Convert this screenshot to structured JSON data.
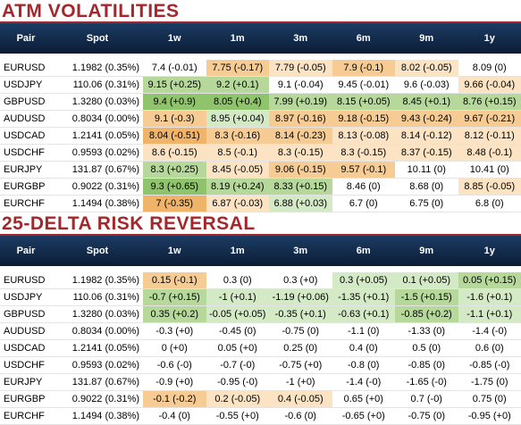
{
  "colors": {
    "header_bg": "#0f2a4d",
    "title_red": "#a6272b",
    "orange_light": "#fbe3c4",
    "orange_mid": "#f6cc94",
    "orange_dark": "#f0b36a",
    "green_light": "#d4e9c6",
    "green_mid": "#b6d99b",
    "green_dark": "#8fc46c"
  },
  "columns": [
    "Pair",
    "Spot",
    "1w",
    "1m",
    "3m",
    "6m",
    "9m",
    "1y"
  ],
  "atm": {
    "title": "ATM VOLATILITIES",
    "rows": [
      {
        "pair": "EURUSD",
        "spot": "1.1982 (0.35%)",
        "cells": [
          {
            "v": "7.4 (-0.01)",
            "c": ""
          },
          {
            "v": "7.75 (-0.17)",
            "c": "orange_mid"
          },
          {
            "v": "7.79 (-0.05)",
            "c": "orange_light"
          },
          {
            "v": "7.9 (-0.1)",
            "c": "orange_mid"
          },
          {
            "v": "8.02 (-0.05)",
            "c": "orange_light"
          },
          {
            "v": "8.09 (0)",
            "c": ""
          }
        ]
      },
      {
        "pair": "USDJPY",
        "spot": "110.06 (0.31%)",
        "cells": [
          {
            "v": "9.15 (+0.25)",
            "c": "green_mid"
          },
          {
            "v": "9.2 (+0.1)",
            "c": "green_mid"
          },
          {
            "v": "9.1 (-0.04)",
            "c": ""
          },
          {
            "v": "9.45 (-0.01)",
            "c": ""
          },
          {
            "v": "9.6 (-0.03)",
            "c": ""
          },
          {
            "v": "9.66 (-0.04)",
            "c": "orange_light"
          }
        ]
      },
      {
        "pair": "GBPUSD",
        "spot": "1.3280 (0.03%)",
        "cells": [
          {
            "v": "9.4 (+0.9)",
            "c": "green_dark"
          },
          {
            "v": "8.05 (+0.4)",
            "c": "green_dark"
          },
          {
            "v": "7.99 (+0.19)",
            "c": "green_mid"
          },
          {
            "v": "8.15 (+0.05)",
            "c": "green_mid"
          },
          {
            "v": "8.45 (+0.1)",
            "c": "green_mid"
          },
          {
            "v": "8.76 (+0.15)",
            "c": "green_mid"
          }
        ]
      },
      {
        "pair": "AUDUSD",
        "spot": "0.8034 (0.00%)",
        "cells": [
          {
            "v": "9.1 (-0.3)",
            "c": "orange_mid"
          },
          {
            "v": "8.95 (+0.04)",
            "c": "green_light"
          },
          {
            "v": "8.97 (-0.16)",
            "c": "orange_mid"
          },
          {
            "v": "9.18 (-0.15)",
            "c": "orange_mid"
          },
          {
            "v": "9.43 (-0.24)",
            "c": "orange_mid"
          },
          {
            "v": "9.67 (-0.21)",
            "c": "orange_mid"
          }
        ]
      },
      {
        "pair": "USDCAD",
        "spot": "1.2141 (0.05%)",
        "cells": [
          {
            "v": "8.04 (-0.51)",
            "c": "orange_dark"
          },
          {
            "v": "8.3 (-0.16)",
            "c": "orange_mid"
          },
          {
            "v": "8.14 (-0.23)",
            "c": "orange_mid"
          },
          {
            "v": "8.13 (-0.08)",
            "c": "orange_light"
          },
          {
            "v": "8.14 (-0.12)",
            "c": "orange_light"
          },
          {
            "v": "8.12 (-0.11)",
            "c": "orange_light"
          }
        ]
      },
      {
        "pair": "USDCHF",
        "spot": "0.9593 (0.02%)",
        "cells": [
          {
            "v": "8.6 (-0.15)",
            "c": "orange_light"
          },
          {
            "v": "8.5 (-0.1)",
            "c": "orange_light"
          },
          {
            "v": "8.3 (-0.15)",
            "c": "orange_light"
          },
          {
            "v": "8.3 (-0.15)",
            "c": "orange_light"
          },
          {
            "v": "8.37 (-0.15)",
            "c": "orange_light"
          },
          {
            "v": "8.48 (-0.1)",
            "c": "orange_light"
          }
        ]
      },
      {
        "pair": "EURJPY",
        "spot": "131.87 (0.67%)",
        "cells": [
          {
            "v": "8.3 (+0.25)",
            "c": "green_mid"
          },
          {
            "v": "8.45 (-0.05)",
            "c": "orange_light"
          },
          {
            "v": "9.06 (-0.15)",
            "c": "orange_mid"
          },
          {
            "v": "9.57 (-0.1)",
            "c": "orange_mid"
          },
          {
            "v": "10.11 (0)",
            "c": ""
          },
          {
            "v": "10.41 (0)",
            "c": ""
          }
        ]
      },
      {
        "pair": "EURGBP",
        "spot": "0.9022 (0.31%)",
        "cells": [
          {
            "v": "9.3 (+0.65)",
            "c": "green_dark"
          },
          {
            "v": "8.19 (+0.24)",
            "c": "green_mid"
          },
          {
            "v": "8.33 (+0.15)",
            "c": "green_mid"
          },
          {
            "v": "8.46 (0)",
            "c": ""
          },
          {
            "v": "8.68 (0)",
            "c": ""
          },
          {
            "v": "8.85 (-0.05)",
            "c": "orange_light"
          }
        ]
      },
      {
        "pair": "EURCHF",
        "spot": "1.1494 (0.38%)",
        "cells": [
          {
            "v": "7 (-0.35)",
            "c": "orange_dark"
          },
          {
            "v": "6.87 (-0.03)",
            "c": "orange_light"
          },
          {
            "v": "6.88 (+0.03)",
            "c": "green_light"
          },
          {
            "v": "6.7 (0)",
            "c": ""
          },
          {
            "v": "6.75 (0)",
            "c": ""
          },
          {
            "v": "6.8 (0)",
            "c": ""
          }
        ]
      }
    ]
  },
  "rr": {
    "title": "25-DELTA RISK REVERSAL",
    "rows": [
      {
        "pair": "EURUSD",
        "spot": "1.1982 (0.35%)",
        "cells": [
          {
            "v": "0.15 (-0.1)",
            "c": "orange_mid"
          },
          {
            "v": "0.3 (0)",
            "c": ""
          },
          {
            "v": "0.3 (+0)",
            "c": ""
          },
          {
            "v": "0.3 (+0.05)",
            "c": "green_light"
          },
          {
            "v": "0.1 (+0.05)",
            "c": "green_light"
          },
          {
            "v": "0.05 (+0.15)",
            "c": "green_mid"
          }
        ]
      },
      {
        "pair": "USDJPY",
        "spot": "110.06 (0.31%)",
        "cells": [
          {
            "v": "-0.7 (+0.15)",
            "c": "green_mid"
          },
          {
            "v": "-1 (+0.1)",
            "c": "green_light"
          },
          {
            "v": "-1.19 (+0.06)",
            "c": "green_light"
          },
          {
            "v": "-1.35 (+0.1)",
            "c": "green_light"
          },
          {
            "v": "-1.5 (+0.15)",
            "c": "green_mid"
          },
          {
            "v": "-1.6 (+0.1)",
            "c": "green_light"
          }
        ]
      },
      {
        "pair": "GBPUSD",
        "spot": "1.3280 (0.03%)",
        "cells": [
          {
            "v": "0.35 (+0.2)",
            "c": "green_mid"
          },
          {
            "v": "-0.05 (+0.05)",
            "c": "green_light"
          },
          {
            "v": "-0.35 (+0.1)",
            "c": "green_light"
          },
          {
            "v": "-0.63 (+0.1)",
            "c": "green_light"
          },
          {
            "v": "-0.85 (+0.2)",
            "c": "green_mid"
          },
          {
            "v": "-1.1 (+0.1)",
            "c": "green_light"
          }
        ]
      },
      {
        "pair": "AUDUSD",
        "spot": "0.8034 (0.00%)",
        "cells": [
          {
            "v": "-0.3 (+0)",
            "c": ""
          },
          {
            "v": "-0.45 (0)",
            "c": ""
          },
          {
            "v": "-0.75 (0)",
            "c": ""
          },
          {
            "v": "-1.1 (0)",
            "c": ""
          },
          {
            "v": "-1.33 (0)",
            "c": ""
          },
          {
            "v": "-1.4 (-0)",
            "c": ""
          }
        ]
      },
      {
        "pair": "USDCAD",
        "spot": "1.2141 (0.05%)",
        "cells": [
          {
            "v": "0 (+0)",
            "c": ""
          },
          {
            "v": "0.05 (+0)",
            "c": ""
          },
          {
            "v": "0.25 (0)",
            "c": ""
          },
          {
            "v": "0.4 (0)",
            "c": ""
          },
          {
            "v": "0.5 (0)",
            "c": ""
          },
          {
            "v": "0.6 (0)",
            "c": ""
          }
        ]
      },
      {
        "pair": "USDCHF",
        "spot": "0.9593 (0.02%)",
        "cells": [
          {
            "v": "-0.6 (-0)",
            "c": ""
          },
          {
            "v": "-0.7 (-0)",
            "c": ""
          },
          {
            "v": "-0.75 (+0)",
            "c": ""
          },
          {
            "v": "-0.8 (0)",
            "c": ""
          },
          {
            "v": "-0.85 (0)",
            "c": ""
          },
          {
            "v": "-0.85 (-0)",
            "c": ""
          }
        ]
      },
      {
        "pair": "EURJPY",
        "spot": "131.87 (0.67%)",
        "cells": [
          {
            "v": "-0.9 (+0)",
            "c": ""
          },
          {
            "v": "-0.95 (-0)",
            "c": ""
          },
          {
            "v": "-1 (+0)",
            "c": ""
          },
          {
            "v": "-1.4 (-0)",
            "c": ""
          },
          {
            "v": "-1.65 (-0)",
            "c": ""
          },
          {
            "v": "-1.75 (0)",
            "c": ""
          }
        ]
      },
      {
        "pair": "EURGBP",
        "spot": "0.9022 (0.31%)",
        "cells": [
          {
            "v": "-0.1 (-0.2)",
            "c": "orange_mid"
          },
          {
            "v": "0.2 (-0.05)",
            "c": "orange_light"
          },
          {
            "v": "0.4 (-0.05)",
            "c": "orange_light"
          },
          {
            "v": "0.65 (+0)",
            "c": ""
          },
          {
            "v": "0.7 (-0)",
            "c": ""
          },
          {
            "v": "0.75 (0)",
            "c": ""
          }
        ]
      },
      {
        "pair": "EURCHF",
        "spot": "1.1494 (0.38%)",
        "cells": [
          {
            "v": "-0.4 (0)",
            "c": ""
          },
          {
            "v": "-0.55 (+0)",
            "c": ""
          },
          {
            "v": "-0.6 (0)",
            "c": ""
          },
          {
            "v": "-0.65 (+0)",
            "c": ""
          },
          {
            "v": "-0.75 (0)",
            "c": ""
          },
          {
            "v": "-0.95 (+0)",
            "c": ""
          }
        ]
      }
    ]
  }
}
